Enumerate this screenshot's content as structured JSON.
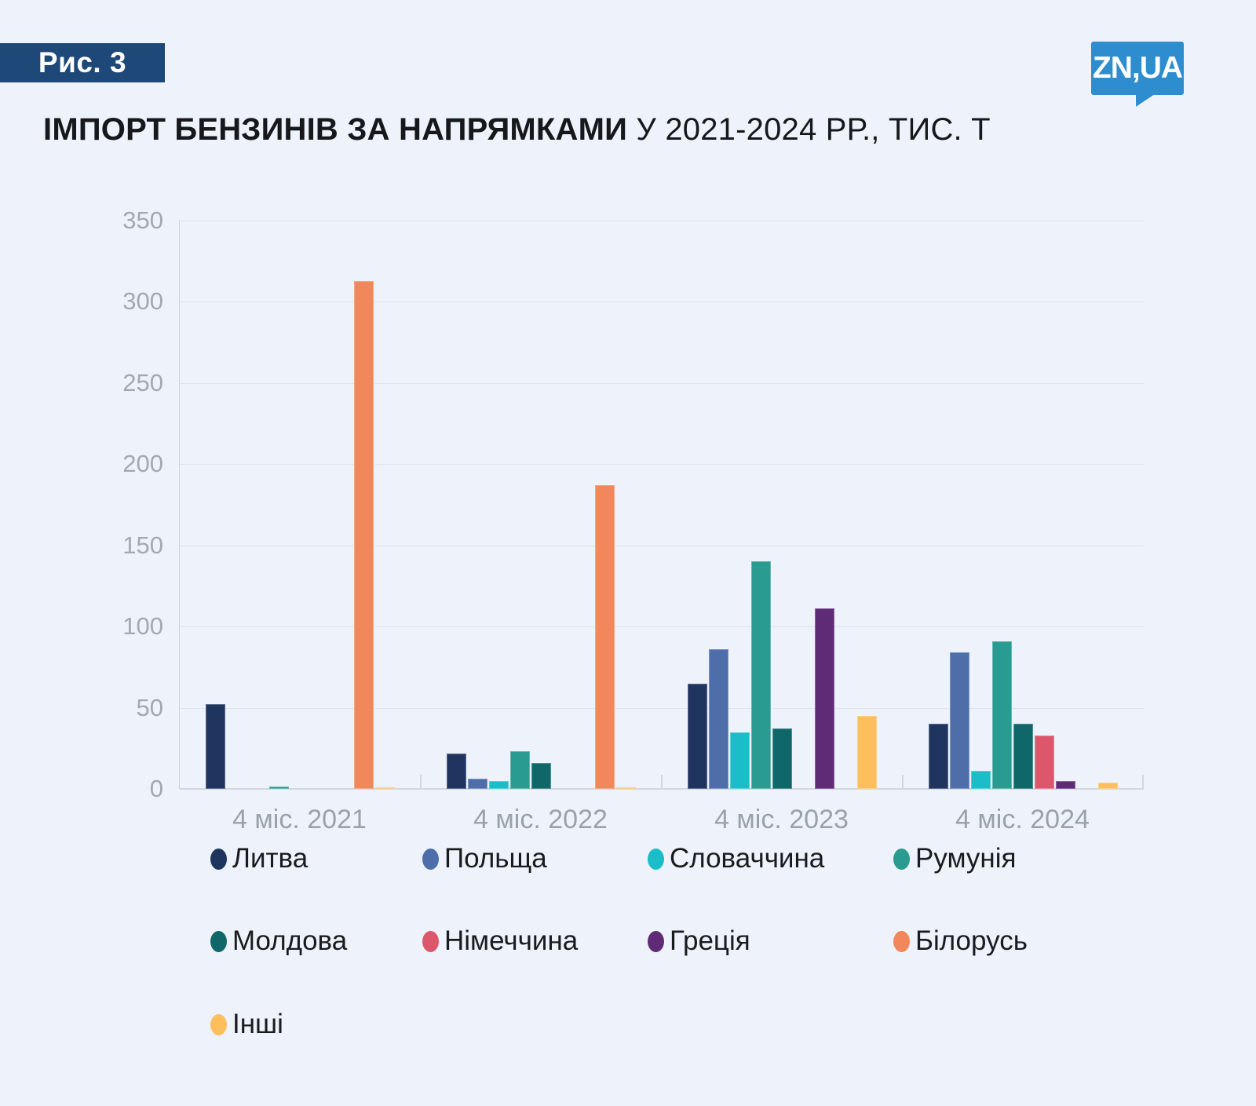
{
  "page": {
    "figure_label": "Рис. 3",
    "logo_text": "ZN,UA",
    "title_bold": "ІМПОРТ БЕНЗИНІВ ЗА НАПРЯМКАМИ",
    "title_regular": " У 2021-2024 РР., ТИС. Т"
  },
  "colors": {
    "background": "#eef3fb",
    "badge": "#1e4878",
    "logo": "#2d8dce",
    "gridline": "#dfe3ea",
    "baseline": "#d3d7dd",
    "axis_line": "#cfd4db",
    "y_label": "#a3a9b1",
    "x_label": "#9aa1ab",
    "legend_text": "#191b1e",
    "title": "#16181b"
  },
  "chart_data": {
    "type": "bar",
    "title": "ІМПОРТ БЕНЗИНІВ ЗА НАПРЯМКАМИ У 2021-2024 РР., ТИС. Т",
    "unit": "тис. т",
    "categories": [
      "4 міс. 2021",
      "4 міс. 2022",
      "4 міс. 2023",
      "4 міс. 2024"
    ],
    "series": [
      {
        "name": "Литва",
        "color": "#1f345e",
        "values": [
          52,
          22,
          65,
          40
        ]
      },
      {
        "name": "Польща",
        "color": "#4d6ea9",
        "values": [
          0,
          6.5,
          86,
          84
        ]
      },
      {
        "name": "Словаччина",
        "color": "#1abdc8",
        "values": [
          0,
          5,
          35,
          11
        ]
      },
      {
        "name": "Румунія",
        "color": "#2a9b90",
        "values": [
          1.5,
          23,
          140,
          91
        ]
      },
      {
        "name": "Молдова",
        "color": "#10676a",
        "values": [
          0,
          16,
          37,
          40
        ]
      },
      {
        "name": "Німеччина",
        "color": "#dc566c",
        "values": [
          0,
          0,
          0,
          33
        ]
      },
      {
        "name": "Греція",
        "color": "#602b76",
        "values": [
          0,
          0,
          111,
          5
        ]
      },
      {
        "name": "Білорусь",
        "color": "#f1875a",
        "values": [
          313,
          187,
          0,
          0
        ]
      },
      {
        "name": "Інші",
        "color": "#fdbe5c",
        "values": [
          1,
          1,
          45,
          4
        ]
      }
    ],
    "ylim": [
      0,
      350
    ],
    "y_ticks": [
      0,
      50,
      100,
      150,
      200,
      250,
      300,
      350
    ],
    "grid": true,
    "legend_position": "bottom"
  },
  "legend": {
    "rows": [
      [
        "Литва",
        "Польща",
        "Словаччина",
        "Румунія"
      ],
      [
        "Молдова",
        "Німеччина",
        "Греція",
        "Білорусь"
      ],
      [
        "Інші"
      ]
    ]
  }
}
